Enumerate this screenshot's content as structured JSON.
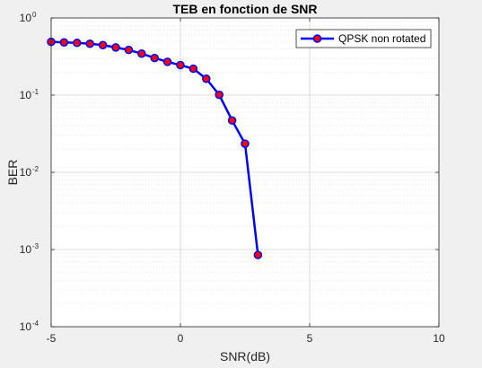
{
  "chart_data": {
    "type": "line",
    "title": "TEB en fonction de SNR",
    "xlabel": "SNR(dB)",
    "ylabel": "BER",
    "xlim": [
      -5,
      10
    ],
    "ylim": [
      0.0001,
      1
    ],
    "yscale": "log",
    "grid": true,
    "minor_grid": true,
    "legend_position": "top-right",
    "x_ticks": [
      -5,
      0,
      5,
      10
    ],
    "x_tick_labels": [
      "-5",
      "0",
      "5",
      "10"
    ],
    "y_ticks": [
      0.0001,
      0.001,
      0.01,
      0.1,
      1
    ],
    "y_tick_base": "10",
    "y_tick_exponents": [
      "-4",
      "-3",
      "-2",
      "-1",
      "0"
    ],
    "series": [
      {
        "name": "QPSK non rotated",
        "color": "#0000ff",
        "marker_color": "#ff0000",
        "x": [
          -5,
          -4.5,
          -4,
          -3.5,
          -3,
          -2.5,
          -2,
          -1.5,
          -1,
          -0.5,
          0,
          0.5,
          1,
          1.5,
          2,
          2.5,
          3
        ],
        "y": [
          0.49,
          0.482,
          0.475,
          0.463,
          0.445,
          0.415,
          0.385,
          0.345,
          0.303,
          0.27,
          0.245,
          0.22,
          0.163,
          0.101,
          0.047,
          0.0235,
          0.00085
        ]
      }
    ]
  }
}
